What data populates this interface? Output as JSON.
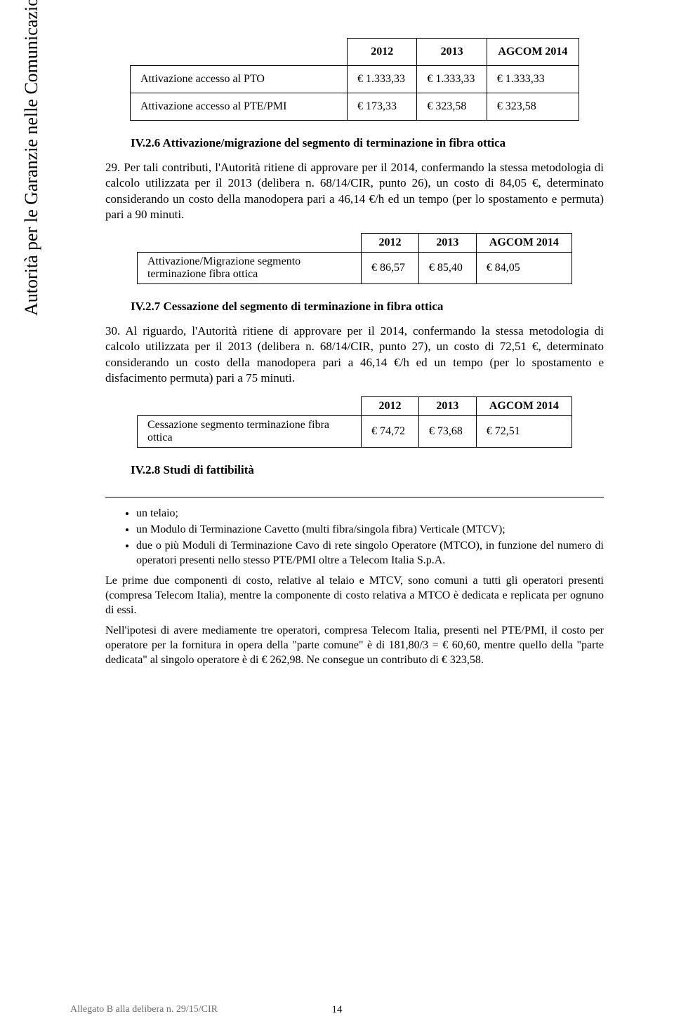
{
  "side_text": "Autorità per le Garanzie nelle Comunicazioni",
  "t1": {
    "headers": [
      "",
      "2012",
      "2013",
      "AGCOM 2014"
    ],
    "rows": [
      [
        "Attivazione accesso al PTO",
        "€ 1.333,33",
        "€ 1.333,33",
        "€ 1.333,33"
      ],
      [
        "Attivazione accesso al PTE/PMI",
        "€ 173,33",
        "€ 323,58",
        "€ 323,58"
      ]
    ]
  },
  "sec_iv26": "IV.2.6 Attivazione/migrazione del segmento di terminazione in fibra ottica",
  "p29_num": "29.",
  "p29": "Per tali contributi, l'Autorità ritiene di approvare per il 2014, confermando la stessa metodologia di calcolo utilizzata per il 2013 (delibera n. 68/14/CIR, punto 26), un costo di 84,05 €, determinato considerando un costo della manodopera pari a 46,14 €/h ed un tempo (per lo spostamento e permuta) pari a 90 minuti.",
  "t2": {
    "headers": [
      "",
      "2012",
      "2013",
      "AGCOM 2014"
    ],
    "rows": [
      [
        "Attivazione/Migrazione segmento terminazione fibra ottica",
        "€ 86,57",
        "€ 85,40",
        "€ 84,05"
      ]
    ]
  },
  "sec_iv27": "IV.2.7 Cessazione del segmento di terminazione in fibra ottica",
  "p30_num": "30.",
  "p30": "Al riguardo, l'Autorità ritiene di approvare per il 2014, confermando la stessa metodologia di calcolo utilizzata per il 2013 (delibera n. 68/14/CIR, punto 27), un costo di 72,51 €, determinato considerando un costo della manodopera pari a 46,14 €/h ed un tempo (per lo spostamento e disfacimento permuta) pari a 75 minuti.",
  "t3": {
    "headers": [
      "",
      "2012",
      "2013",
      "AGCOM 2014"
    ],
    "rows": [
      [
        "Cessazione segmento terminazione fibra ottica",
        "€ 74,72",
        "€ 73,68",
        "€ 72,51"
      ]
    ]
  },
  "sec_iv28": "IV.2.8 Studi di fattibilità",
  "bullets": [
    "un telaio;",
    "un Modulo di Terminazione Cavetto (multi fibra/singola fibra) Verticale (MTCV);",
    "due o più Moduli di Terminazione Cavo di rete singolo Operatore (MTCO), in funzione del numero di operatori presenti nello stesso PTE/PMI oltre a Telecom Italia S.p.A."
  ],
  "fp1": "Le prime due componenti di costo, relative al telaio e MTCV, sono comuni a tutti gli operatori presenti (compresa Telecom Italia), mentre la componente di costo relativa a MTCO è dedicata e replicata per ognuno di essi.",
  "fp2": "Nell'ipotesi di avere mediamente tre operatori, compresa Telecom Italia, presenti nel PTE/PMI, il costo per operatore per la fornitura in opera della \"parte comune\" è di 181,80/3 = € 60,60, mentre quello della \"parte dedicata\" al singolo operatore è di € 262,98. Ne consegue un contributo di € 323,58.",
  "footer_left": "Allegato B alla delibera n. 29/15/CIR",
  "footer_page": "14"
}
